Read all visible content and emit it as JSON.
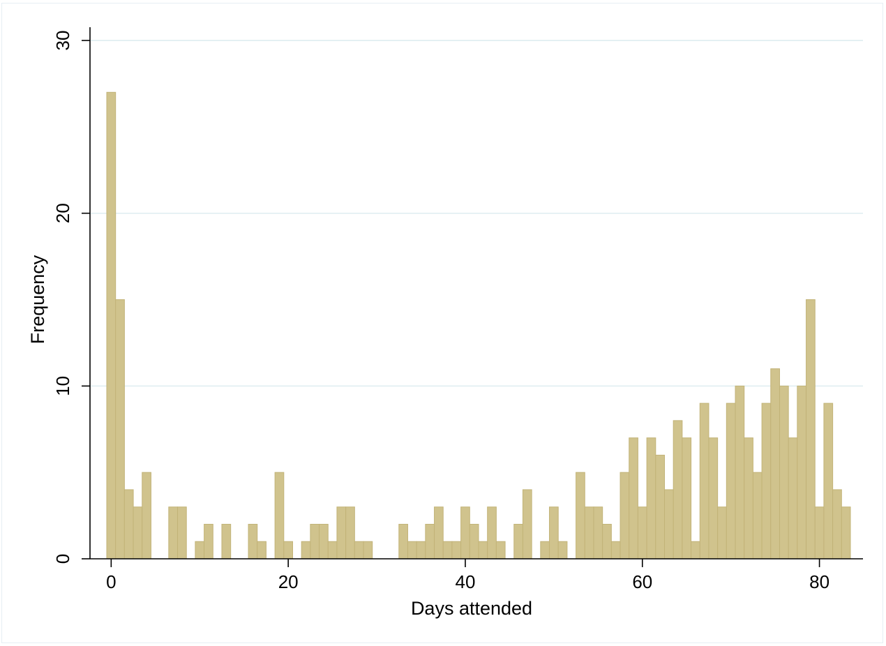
{
  "chart_data": {
    "type": "bar",
    "title": "",
    "xlabel": "Days attended",
    "ylabel": "Frequency",
    "xlim": [
      -2,
      85
    ],
    "ylim": [
      0,
      30
    ],
    "bin_width": 1,
    "x_ticks": [
      0,
      20,
      40,
      60,
      80
    ],
    "y_ticks": [
      0,
      10,
      20,
      30
    ],
    "grid": true,
    "legend": "none",
    "bar_color": "#d0c38d",
    "bins": [
      {
        "x": 0,
        "count": 27
      },
      {
        "x": 1,
        "count": 15
      },
      {
        "x": 2,
        "count": 4
      },
      {
        "x": 3,
        "count": 3
      },
      {
        "x": 4,
        "count": 5
      },
      {
        "x": 7,
        "count": 3
      },
      {
        "x": 8,
        "count": 3
      },
      {
        "x": 10,
        "count": 1
      },
      {
        "x": 11,
        "count": 2
      },
      {
        "x": 13,
        "count": 2
      },
      {
        "x": 16,
        "count": 2
      },
      {
        "x": 17,
        "count": 1
      },
      {
        "x": 19,
        "count": 5
      },
      {
        "x": 20,
        "count": 1
      },
      {
        "x": 22,
        "count": 1
      },
      {
        "x": 23,
        "count": 2
      },
      {
        "x": 24,
        "count": 2
      },
      {
        "x": 25,
        "count": 1
      },
      {
        "x": 26,
        "count": 3
      },
      {
        "x": 27,
        "count": 3
      },
      {
        "x": 28,
        "count": 1
      },
      {
        "x": 29,
        "count": 1
      },
      {
        "x": 33,
        "count": 2
      },
      {
        "x": 34,
        "count": 1
      },
      {
        "x": 35,
        "count": 1
      },
      {
        "x": 36,
        "count": 2
      },
      {
        "x": 37,
        "count": 3
      },
      {
        "x": 38,
        "count": 1
      },
      {
        "x": 39,
        "count": 1
      },
      {
        "x": 40,
        "count": 3
      },
      {
        "x": 41,
        "count": 2
      },
      {
        "x": 42,
        "count": 1
      },
      {
        "x": 43,
        "count": 3
      },
      {
        "x": 44,
        "count": 1
      },
      {
        "x": 46,
        "count": 2
      },
      {
        "x": 47,
        "count": 4
      },
      {
        "x": 49,
        "count": 1
      },
      {
        "x": 50,
        "count": 3
      },
      {
        "x": 51,
        "count": 1
      },
      {
        "x": 53,
        "count": 5
      },
      {
        "x": 54,
        "count": 3
      },
      {
        "x": 55,
        "count": 3
      },
      {
        "x": 56,
        "count": 2
      },
      {
        "x": 57,
        "count": 1
      },
      {
        "x": 58,
        "count": 5
      },
      {
        "x": 59,
        "count": 7
      },
      {
        "x": 60,
        "count": 3
      },
      {
        "x": 61,
        "count": 7
      },
      {
        "x": 62,
        "count": 6
      },
      {
        "x": 63,
        "count": 4
      },
      {
        "x": 64,
        "count": 8
      },
      {
        "x": 65,
        "count": 7
      },
      {
        "x": 66,
        "count": 1
      },
      {
        "x": 67,
        "count": 9
      },
      {
        "x": 68,
        "count": 7
      },
      {
        "x": 69,
        "count": 3
      },
      {
        "x": 70,
        "count": 9
      },
      {
        "x": 71,
        "count": 10
      },
      {
        "x": 72,
        "count": 7
      },
      {
        "x": 73,
        "count": 5
      },
      {
        "x": 74,
        "count": 9
      },
      {
        "x": 75,
        "count": 11
      },
      {
        "x": 76,
        "count": 10
      },
      {
        "x": 77,
        "count": 7
      },
      {
        "x": 78,
        "count": 10
      },
      {
        "x": 79,
        "count": 15
      },
      {
        "x": 80,
        "count": 3
      },
      {
        "x": 81,
        "count": 9
      },
      {
        "x": 82,
        "count": 4
      },
      {
        "x": 83,
        "count": 3
      }
    ]
  }
}
